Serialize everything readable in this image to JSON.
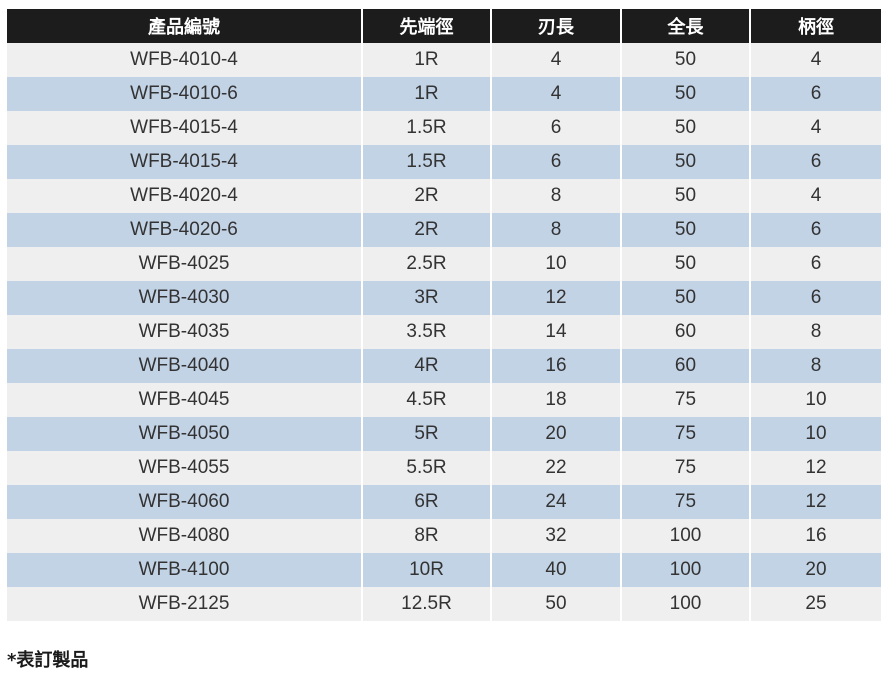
{
  "table": {
    "headers": [
      "產品編號",
      "先端徑",
      "刃長",
      "全長",
      "柄徑"
    ],
    "rows": [
      [
        "WFB-4010-4",
        "1R",
        "4",
        "50",
        "4"
      ],
      [
        "WFB-4010-6",
        "1R",
        "4",
        "50",
        "6"
      ],
      [
        "WFB-4015-4",
        "1.5R",
        "6",
        "50",
        "4"
      ],
      [
        "WFB-4015-4",
        "1.5R",
        "6",
        "50",
        "6"
      ],
      [
        "WFB-4020-4",
        "2R",
        "8",
        "50",
        "4"
      ],
      [
        "WFB-4020-6",
        "2R",
        "8",
        "50",
        "6"
      ],
      [
        "WFB-4025",
        "2.5R",
        "10",
        "50",
        "6"
      ],
      [
        "WFB-4030",
        "3R",
        "12",
        "50",
        "6"
      ],
      [
        "WFB-4035",
        "3.5R",
        "14",
        "60",
        "8"
      ],
      [
        "WFB-4040",
        "4R",
        "16",
        "60",
        "8"
      ],
      [
        "WFB-4045",
        "4.5R",
        "18",
        "75",
        "10"
      ],
      [
        "WFB-4050",
        "5R",
        "20",
        "75",
        "10"
      ],
      [
        "WFB-4055",
        "5.5R",
        "22",
        "75",
        "12"
      ],
      [
        "WFB-4060",
        "6R",
        "24",
        "75",
        "12"
      ],
      [
        "WFB-4080",
        "8R",
        "32",
        "100",
        "16"
      ],
      [
        "WFB-4100",
        "10R",
        "40",
        "100",
        "20"
      ],
      [
        "WFB-2125",
        "12.5R",
        "50",
        "100",
        "25"
      ]
    ]
  },
  "footnote": "*表訂製品",
  "colors": {
    "header_bg": "#1c1c1c",
    "row_odd": "#efefef",
    "row_even": "#c3d3e6"
  }
}
